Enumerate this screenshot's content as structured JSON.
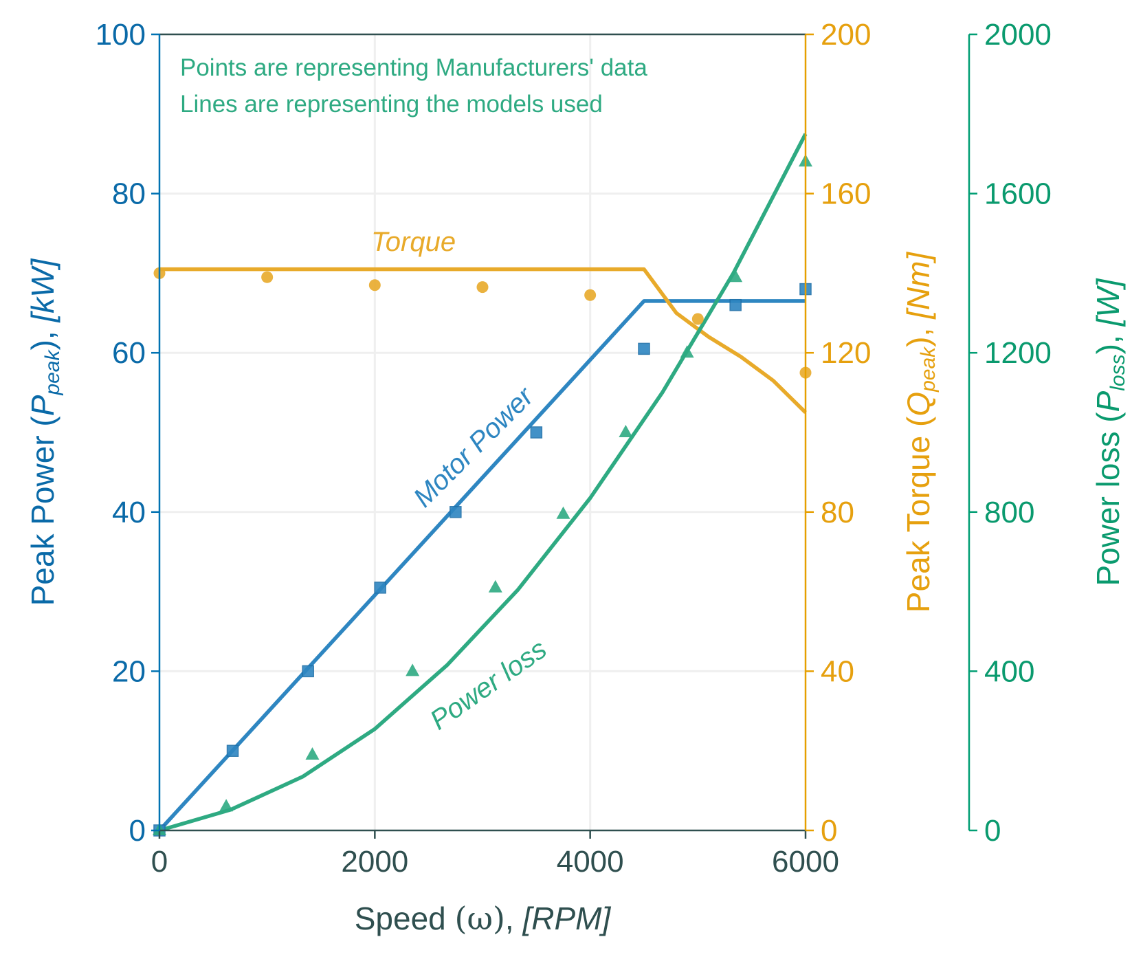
{
  "chart_data": {
    "type": "line",
    "x": {
      "title_main": "Speed",
      "title_symbol": "(ω)",
      "title_unit": "[RPM]",
      "min": 0,
      "max": 6000,
      "ticks": [
        0,
        2000,
        4000,
        6000
      ]
    },
    "axes": {
      "power": {
        "title_main": "Peak Power",
        "title_symbol": "P",
        "title_sub": "peak",
        "title_unit": "kW",
        "min": 0,
        "max": 100,
        "ticks": [
          0,
          20,
          40,
          60,
          80,
          100
        ],
        "color": "#0072b2",
        "label_color": "#0a6aa8"
      },
      "torque": {
        "title_main": "Peak Torque",
        "title_symbol": "Q",
        "title_sub": "peak",
        "title_unit": "Nm",
        "min": 0,
        "max": 200,
        "ticks": [
          0,
          40,
          80,
          120,
          160,
          200
        ],
        "color": "#e69f00",
        "label_color": "#e6a00e"
      },
      "loss": {
        "title_main": "Power loss",
        "title_symbol": "P",
        "title_sub": "loss",
        "title_unit": "W",
        "min": 0,
        "max": 2000,
        "ticks": [
          0,
          400,
          800,
          1200,
          1600,
          2000
        ],
        "color": "#009e73",
        "label_color": "#0a9a6e"
      }
    },
    "grid": true,
    "annotations": [
      "Points are representing Manufacturers' data",
      "Lines are representing the models used"
    ],
    "series": [
      {
        "name": "Motor Power",
        "axis": "power",
        "color": "#2e86c1",
        "marker": "square",
        "model_line": [
          [
            0,
            0
          ],
          [
            4500,
            66.5
          ],
          [
            6000,
            66.5
          ]
        ],
        "points": [
          [
            0,
            0
          ],
          [
            680,
            10
          ],
          [
            1380,
            20
          ],
          [
            2050,
            30.5
          ],
          [
            2750,
            40
          ],
          [
            3500,
            50
          ],
          [
            4500,
            60.5
          ],
          [
            5350,
            66
          ],
          [
            6000,
            68
          ]
        ]
      },
      {
        "name": "Torque",
        "axis": "torque",
        "color": "#e8aa2a",
        "marker": "circle",
        "model_line": [
          [
            0,
            141
          ],
          [
            4500,
            141
          ],
          [
            4800,
            130
          ],
          [
            5100,
            124
          ],
          [
            5400,
            119
          ],
          [
            5700,
            113
          ],
          [
            6000,
            105
          ]
        ],
        "points": [
          [
            0,
            140
          ],
          [
            1000,
            139
          ],
          [
            2000,
            137
          ],
          [
            3000,
            136.5
          ],
          [
            4000,
            134.5
          ],
          [
            5000,
            128.5
          ],
          [
            6000,
            115
          ]
        ]
      },
      {
        "name": "Power loss",
        "axis": "loss",
        "color": "#2eaa82",
        "marker": "triangle",
        "model_line": [
          [
            0,
            0
          ],
          [
            660,
            52
          ],
          [
            1330,
            135
          ],
          [
            2000,
            255
          ],
          [
            2670,
            415
          ],
          [
            3330,
            605
          ],
          [
            4000,
            835
          ],
          [
            4670,
            1100
          ],
          [
            5330,
            1400
          ],
          [
            6000,
            1750
          ]
        ],
        "points": [
          [
            0,
            0
          ],
          [
            620,
            60
          ],
          [
            1420,
            190
          ],
          [
            2350,
            400
          ],
          [
            3120,
            610
          ],
          [
            3750,
            795
          ],
          [
            4330,
            1000
          ],
          [
            4900,
            1200
          ],
          [
            5350,
            1390
          ],
          [
            6000,
            1680
          ]
        ]
      }
    ]
  }
}
